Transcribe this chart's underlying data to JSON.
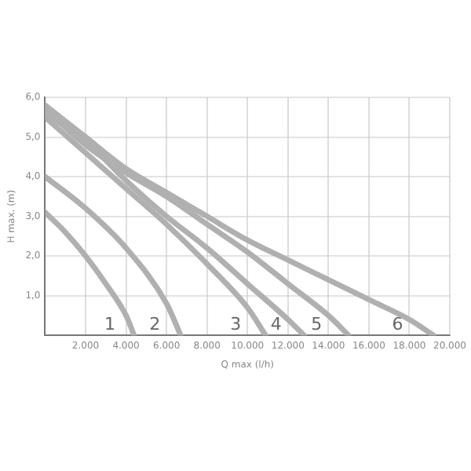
{
  "chart_data": {
    "type": "line",
    "xlabel": "Q max (l/h)",
    "ylabel": "H max. (m)",
    "xlim": [
      0,
      20000
    ],
    "ylim": [
      0,
      6
    ],
    "xticks": [
      {
        "value": 2000,
        "label": "2.000"
      },
      {
        "value": 4000,
        "label": "4.000"
      },
      {
        "value": 6000,
        "label": "6.000"
      },
      {
        "value": 8000,
        "label": "8.000"
      },
      {
        "value": 10000,
        "label": "10.000"
      },
      {
        "value": 12000,
        "label": "12.000"
      },
      {
        "value": 14000,
        "label": "14.000"
      },
      {
        "value": 16000,
        "label": "16.000"
      },
      {
        "value": 18000,
        "label": "18.000"
      },
      {
        "value": 20000,
        "label": "20.000"
      }
    ],
    "yticks": [
      {
        "value": 1,
        "label": "1,0"
      },
      {
        "value": 2,
        "label": "2,0"
      },
      {
        "value": 3,
        "label": "3,0"
      },
      {
        "value": 4,
        "label": "4,0"
      },
      {
        "value": 5,
        "label": "5,0"
      },
      {
        "value": 6,
        "label": "6,0"
      }
    ],
    "grid": true,
    "legend": false,
    "marker": "none",
    "line_style": "solid",
    "series": [
      {
        "name": "1",
        "color": "#b0b0b0",
        "x": [
          0,
          1000,
          2000,
          3000,
          4000,
          4400
        ],
        "values": [
          3.1,
          2.6,
          2.0,
          1.3,
          0.5,
          0
        ]
      },
      {
        "name": "2",
        "color": "#b0b0b0",
        "x": [
          0,
          2000,
          4000,
          6000,
          6700
        ],
        "values": [
          4.0,
          3.2,
          2.2,
          0.8,
          0
        ]
      },
      {
        "name": "3",
        "color": "#b0b0b0",
        "x": [
          0,
          2000,
          4000,
          6000,
          8000,
          10000,
          10900
        ],
        "values": [
          5.5,
          4.6,
          3.7,
          2.8,
          1.8,
          0.7,
          0
        ]
      },
      {
        "name": "4",
        "color": "#b0b0b0",
        "x": [
          0,
          2000,
          4000,
          6000,
          8000,
          10000,
          12000,
          12800
        ],
        "values": [
          5.6,
          4.9,
          3.9,
          3.0,
          2.2,
          1.3,
          0.4,
          0
        ]
      },
      {
        "name": "5",
        "color": "#b0b0b0",
        "x": [
          0,
          2000,
          4000,
          6000,
          8000,
          10000,
          12000,
          14000,
          15000
        ],
        "values": [
          5.7,
          4.8,
          4.1,
          3.5,
          2.8,
          2.1,
          1.3,
          0.5,
          0
        ]
      },
      {
        "name": "6",
        "color": "#b0b0b0",
        "x": [
          0,
          2000,
          4000,
          6000,
          8000,
          10000,
          12000,
          14000,
          16000,
          18000,
          19200
        ],
        "values": [
          5.8,
          5.0,
          4.2,
          3.6,
          3.0,
          2.4,
          1.9,
          1.4,
          0.9,
          0.4,
          0
        ]
      }
    ]
  }
}
